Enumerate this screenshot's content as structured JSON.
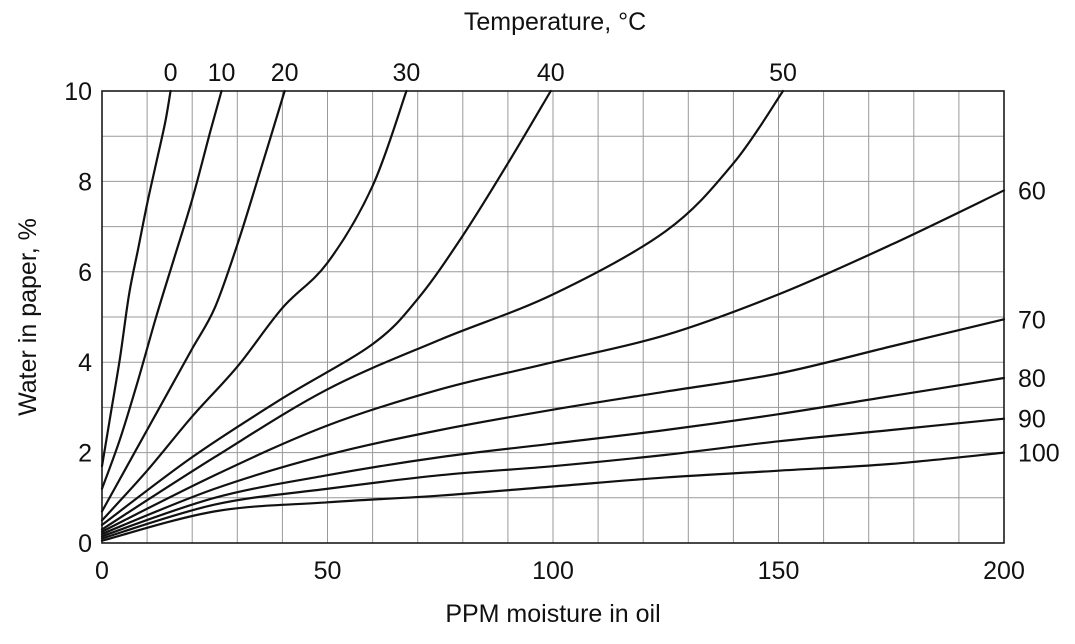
{
  "chart_data": {
    "type": "line",
    "title": "Temperature, °C",
    "xlabel": "PPM moisture in oil",
    "ylabel": "Water in paper, %",
    "xlim": [
      0,
      200
    ],
    "ylim": [
      0,
      10
    ],
    "x_ticks": [
      0,
      50,
      100,
      150,
      200
    ],
    "y_ticks": [
      0,
      2,
      4,
      6,
      8,
      10
    ],
    "x_minor_step": 10,
    "y_minor_step": 1,
    "grid": true,
    "series": [
      {
        "name": "0",
        "x": [
          0,
          2,
          4,
          6,
          8,
          10,
          12,
          14,
          15.2
        ],
        "y": [
          1.7,
          2.9,
          4.1,
          5.5,
          6.5,
          7.5,
          8.4,
          9.3,
          10
        ]
      },
      {
        "name": "10",
        "x": [
          0,
          4,
          8,
          12,
          16,
          20,
          24,
          26.5
        ],
        "y": [
          1.2,
          2.3,
          3.6,
          5.0,
          6.3,
          7.6,
          9.1,
          10
        ]
      },
      {
        "name": "20",
        "x": [
          0,
          5,
          10,
          15,
          20,
          25,
          30,
          35,
          40.5
        ],
        "y": [
          0.7,
          1.6,
          2.5,
          3.4,
          4.3,
          5.2,
          6.6,
          8.2,
          10
        ]
      },
      {
        "name": "30",
        "x": [
          0,
          10,
          20,
          30,
          40,
          50,
          60,
          67.5
        ],
        "y": [
          0.5,
          1.6,
          2.8,
          3.9,
          5.2,
          6.2,
          7.9,
          10
        ]
      },
      {
        "name": "40",
        "x": [
          0,
          20,
          40,
          60,
          70,
          80,
          90,
          99.5
        ],
        "y": [
          0.4,
          1.9,
          3.2,
          4.4,
          5.4,
          6.8,
          8.4,
          10
        ]
      },
      {
        "name": "50",
        "x": [
          0,
          25,
          50,
          75,
          100,
          125,
          140,
          151
        ],
        "y": [
          0.3,
          1.9,
          3.4,
          4.5,
          5.5,
          6.9,
          8.4,
          10
        ]
      },
      {
        "name": "60",
        "x": [
          0,
          25,
          50,
          75,
          100,
          125,
          150,
          175,
          200
        ],
        "y": [
          0.25,
          1.5,
          2.6,
          3.4,
          4.0,
          4.6,
          5.5,
          6.6,
          7.8
        ]
      },
      {
        "name": "70",
        "x": [
          0,
          25,
          50,
          75,
          100,
          125,
          150,
          175,
          200
        ],
        "y": [
          0.2,
          1.2,
          1.95,
          2.5,
          2.95,
          3.35,
          3.75,
          4.35,
          4.95
        ]
      },
      {
        "name": "80",
        "x": [
          0,
          25,
          50,
          75,
          100,
          125,
          150,
          175,
          200
        ],
        "y": [
          0.15,
          1.0,
          1.5,
          1.9,
          2.2,
          2.5,
          2.85,
          3.25,
          3.65
        ]
      },
      {
        "name": "90",
        "x": [
          0,
          25,
          50,
          75,
          100,
          125,
          150,
          175,
          200
        ],
        "y": [
          0.1,
          0.85,
          1.2,
          1.5,
          1.7,
          1.95,
          2.25,
          2.5,
          2.75
        ]
      },
      {
        "name": "100",
        "x": [
          0,
          25,
          50,
          75,
          100,
          125,
          150,
          175,
          200
        ],
        "y": [
          0.05,
          0.7,
          0.9,
          1.05,
          1.25,
          1.45,
          1.6,
          1.75,
          2.0
        ]
      }
    ]
  }
}
